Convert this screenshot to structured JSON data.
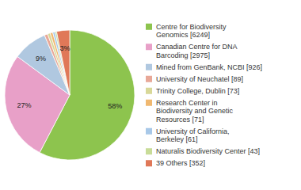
{
  "chart_data": {
    "type": "pie",
    "categories": [
      "Centre for Biodiversity\nGenomics [6249]",
      "Canadian Centre for DNA\nBarcoding [2975]",
      "Mined from GenBank, NCBI [926]",
      "University of Neuchatel [89]",
      "Trinity College, Dublin [73]",
      "Research Center in\nBiodiversity and Genetic\nResources [71]",
      "University of California,\nBerkeley [61]",
      "Naturalis Biodiversity Center [43]",
      "39 Others [352]"
    ],
    "values": [
      6249,
      2975,
      926,
      89,
      73,
      71,
      61,
      43,
      352
    ],
    "value_labels": [
      "58%",
      "27%",
      "9%",
      null,
      null,
      null,
      null,
      null,
      "3%"
    ],
    "colors": [
      "#8dc44e",
      "#e8a0c8",
      "#b0c8e0",
      "#e8a898",
      "#d8d898",
      "#f0b870",
      "#a8c8e8",
      "#c8dc98",
      "#e07858"
    ],
    "data_labels": true,
    "legend": "right"
  }
}
